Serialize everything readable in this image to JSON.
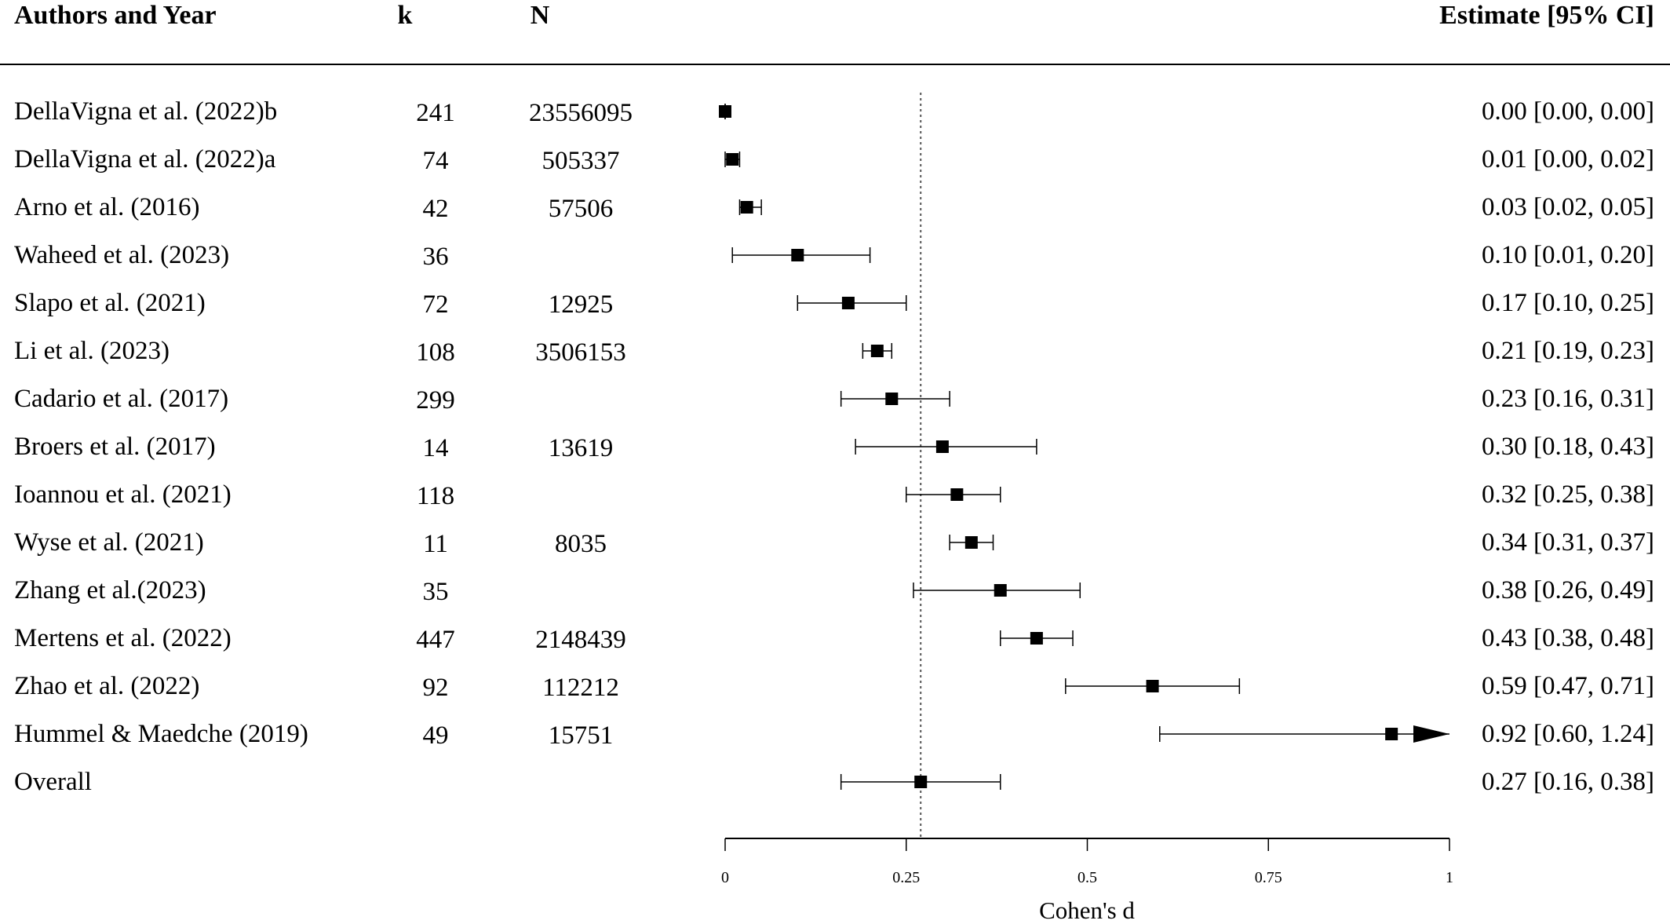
{
  "chart_data": {
    "type": "forest",
    "headers": {
      "study": "Authors and Year",
      "k": "k",
      "n": "N",
      "estimate": "Estimate [95% CI]"
    },
    "xlabel": "Cohen's d",
    "xlim": [
      0,
      1
    ],
    "xticks": [
      0,
      0.25,
      0.5,
      0.75,
      1
    ],
    "xtick_labels": [
      "0",
      "0.25",
      "0.5",
      "0.75",
      "1"
    ],
    "reference_line": 0.27,
    "colors": {
      "marker": "#000000",
      "line": "#000000"
    },
    "studies": [
      {
        "study": "DellaVigna et al. (2022)b",
        "k": "241",
        "n": "23556095",
        "est": 0.0,
        "lo": 0.0,
        "hi": 0.0,
        "label": "0.00 [0.00, 0.00]"
      },
      {
        "study": "DellaVigna et al. (2022)a",
        "k": "74",
        "n": "505337",
        "est": 0.01,
        "lo": 0.0,
        "hi": 0.02,
        "label": "0.01 [0.00, 0.02]"
      },
      {
        "study": "Arno et al. (2016)",
        "k": "42",
        "n": "57506",
        "est": 0.03,
        "lo": 0.02,
        "hi": 0.05,
        "label": "0.03 [0.02, 0.05]"
      },
      {
        "study": "Waheed et al. (2023)",
        "k": "36",
        "n": "",
        "est": 0.1,
        "lo": 0.01,
        "hi": 0.2,
        "label": "0.10 [0.01, 0.20]"
      },
      {
        "study": "Slapo et al. (2021)",
        "k": "72",
        "n": "12925",
        "est": 0.17,
        "lo": 0.1,
        "hi": 0.25,
        "label": "0.17 [0.10, 0.25]"
      },
      {
        "study": "Li et al. (2023)",
        "k": "108",
        "n": "3506153",
        "est": 0.21,
        "lo": 0.19,
        "hi": 0.23,
        "label": "0.21 [0.19, 0.23]"
      },
      {
        "study": "Cadario et al. (2017)",
        "k": "299",
        "n": "",
        "est": 0.23,
        "lo": 0.16,
        "hi": 0.31,
        "label": "0.23 [0.16, 0.31]"
      },
      {
        "study": "Broers et al. (2017)",
        "k": "14",
        "n": "13619",
        "est": 0.3,
        "lo": 0.18,
        "hi": 0.43,
        "label": "0.30 [0.18, 0.43]"
      },
      {
        "study": "Ioannou et al. (2021)",
        "k": "118",
        "n": "",
        "est": 0.32,
        "lo": 0.25,
        "hi": 0.38,
        "label": "0.32 [0.25, 0.38]"
      },
      {
        "study": "Wyse et al. (2021)",
        "k": "11",
        "n": "8035",
        "est": 0.34,
        "lo": 0.31,
        "hi": 0.37,
        "label": "0.34 [0.31, 0.37]"
      },
      {
        "study": "Zhang et al.(2023)",
        "k": "35",
        "n": "",
        "est": 0.38,
        "lo": 0.26,
        "hi": 0.49,
        "label": "0.38 [0.26, 0.49]"
      },
      {
        "study": "Mertens et al. (2022)",
        "k": "447",
        "n": "2148439",
        "est": 0.43,
        "lo": 0.38,
        "hi": 0.48,
        "label": "0.43 [0.38, 0.48]"
      },
      {
        "study": "Zhao et al. (2022)",
        "k": "92",
        "n": "112212",
        "est": 0.59,
        "lo": 0.47,
        "hi": 0.71,
        "label": "0.59 [0.47, 0.71]"
      },
      {
        "study": "Hummel & Maedche (2019)",
        "k": "49",
        "n": "15751",
        "est": 0.92,
        "lo": 0.6,
        "hi": 1.24,
        "label": "0.92 [0.60, 1.24]"
      }
    ],
    "overall": {
      "study": "Overall",
      "est": 0.27,
      "lo": 0.16,
      "hi": 0.38,
      "label": "0.27 [0.16, 0.38]"
    }
  }
}
